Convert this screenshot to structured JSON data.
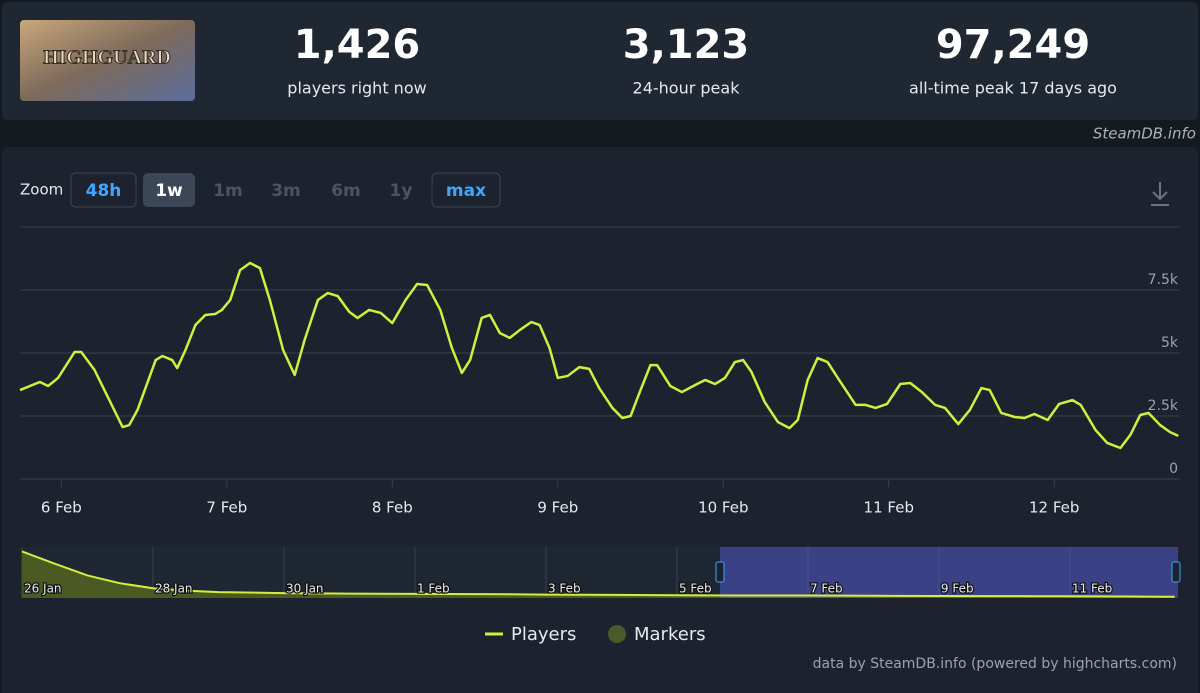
{
  "logo_text": "HIGHGUARD",
  "stats": [
    {
      "value": "1,426",
      "label": "players right now"
    },
    {
      "value": "3,123",
      "label": "24-hour peak"
    },
    {
      "value": "97,249",
      "label": "all-time peak 17 days ago"
    }
  ],
  "source": "SteamDB.info",
  "zoom": {
    "label": "Zoom",
    "buttons": [
      "48h",
      "1w",
      "1m",
      "3m",
      "6m",
      "1y",
      "max"
    ]
  },
  "credit": "data by SteamDB.info (powered by highcharts.com)",
  "chart_data": [
    {
      "type": "line",
      "x": [
        5.75,
        5.87,
        5.92,
        5.98,
        6.08,
        6.12,
        6.2,
        6.29,
        6.37,
        6.41,
        6.46,
        6.57,
        6.61,
        6.67,
        6.7,
        6.75,
        6.81,
        6.87,
        6.93,
        6.97,
        7.02,
        7.08,
        7.14,
        7.2,
        7.26,
        7.34,
        7.41,
        7.47,
        7.55,
        7.61,
        7.67,
        7.74,
        7.79,
        7.86,
        7.93,
        8,
        8.08,
        8.15,
        8.21,
        8.29,
        8.36,
        8.42,
        8.47,
        8.54,
        8.59,
        8.65,
        8.71,
        8.77,
        8.84,
        8.89,
        8.95,
        9,
        9.06,
        9.13,
        9.19,
        9.25,
        9.33,
        9.39,
        9.44,
        9.5,
        9.56,
        9.6,
        9.68,
        9.75,
        9.83,
        9.89,
        9.95,
        10.01,
        10.07,
        10.12,
        10.17,
        10.25,
        10.33,
        10.4,
        10.45,
        10.51,
        10.57,
        10.63,
        10.7,
        10.8,
        10.86,
        10.92,
        10.99,
        11.07,
        11.13,
        11.2,
        11.28,
        11.34,
        11.42,
        11.49,
        11.56,
        11.61,
        11.68,
        11.76,
        11.82,
        11.88,
        11.96,
        12.03,
        12.11,
        12.16,
        12.25,
        12.32,
        12.4,
        12.46,
        12.52,
        12.57,
        12.64,
        12.7,
        12.75
      ],
      "series": [
        {
          "name": "Players",
          "color": "#d4ee3c",
          "values": [
            3530,
            3850,
            3690,
            4010,
            5040,
            5040,
            4330,
            3130,
            2060,
            2140,
            2740,
            4720,
            4880,
            4720,
            4400,
            5120,
            6110,
            6510,
            6550,
            6710,
            7100,
            8290,
            8570,
            8370,
            7100,
            5120,
            4130,
            5520,
            7100,
            7380,
            7260,
            6630,
            6390,
            6710,
            6590,
            6190,
            7100,
            7740,
            7700,
            6710,
            5200,
            4210,
            4720,
            6390,
            6510,
            5790,
            5600,
            5910,
            6230,
            6110,
            5200,
            4010,
            4090,
            4440,
            4370,
            3610,
            2820,
            2420,
            2500,
            3530,
            4520,
            4520,
            3690,
            3450,
            3730,
            3930,
            3770,
            4010,
            4640,
            4720,
            4250,
            3060,
            2260,
            2020,
            2340,
            3930,
            4800,
            4640,
            3930,
            2940,
            2940,
            2820,
            2980,
            3770,
            3810,
            3450,
            2940,
            2820,
            2180,
            2740,
            3610,
            3530,
            2620,
            2460,
            2420,
            2580,
            2340,
            2980,
            3130,
            2940,
            1940,
            1430,
            1230,
            1750,
            2540,
            2620,
            2140,
            1860,
            1710
          ]
        }
      ],
      "markers": {
        "name": "Markers",
        "color": "#4b5a2a"
      },
      "xlim": [
        5.75,
        12.76
      ],
      "xticks": [
        {
          "value": 6,
          "label": "6 Feb"
        },
        {
          "value": 7,
          "label": "7 Feb"
        },
        {
          "value": 8,
          "label": "8 Feb"
        },
        {
          "value": 9,
          "label": "9 Feb"
        },
        {
          "value": 10,
          "label": "10 Feb"
        },
        {
          "value": 11,
          "label": "11 Feb"
        },
        {
          "value": 12,
          "label": "12 Feb"
        }
      ],
      "ylim": [
        0,
        10000
      ],
      "yticks": [
        0,
        {
          "value": 2500,
          "label": "2.5k"
        },
        {
          "value": 5000,
          "label": "5k"
        },
        {
          "value": 7500,
          "label": "7.5k"
        }
      ],
      "grid": true
    },
    {
      "type": "area",
      "x": [
        26,
        26.5,
        27,
        27.5,
        28,
        28.5,
        29,
        30,
        31,
        32,
        33,
        34,
        35,
        36,
        37,
        38,
        39,
        40,
        41,
        42,
        43,
        43.6
      ],
      "values": [
        95000,
        70000,
        46000,
        30000,
        20000,
        15000,
        12000,
        10000,
        9000,
        8500,
        8000,
        7000,
        6500,
        5500,
        5000,
        5000,
        4500,
        4000,
        3800,
        3500,
        3000,
        2500
      ],
      "color": "#d4ee3c",
      "xlim": [
        25.97,
        43.65
      ],
      "ylim": [
        0,
        100000
      ],
      "xticks": [
        {
          "value": 26,
          "label": "26 Jan"
        },
        {
          "value": 28,
          "label": "28 Jan"
        },
        {
          "value": 30,
          "label": "30 Jan"
        },
        {
          "value": 32,
          "label": "1 Feb"
        },
        {
          "value": 34,
          "label": "3 Feb"
        },
        {
          "value": 36,
          "label": "5 Feb"
        },
        {
          "value": 38,
          "label": "7 Feb"
        },
        {
          "value": 40,
          "label": "9 Feb"
        },
        {
          "value": 42,
          "label": "11 Feb"
        }
      ]
    }
  ]
}
